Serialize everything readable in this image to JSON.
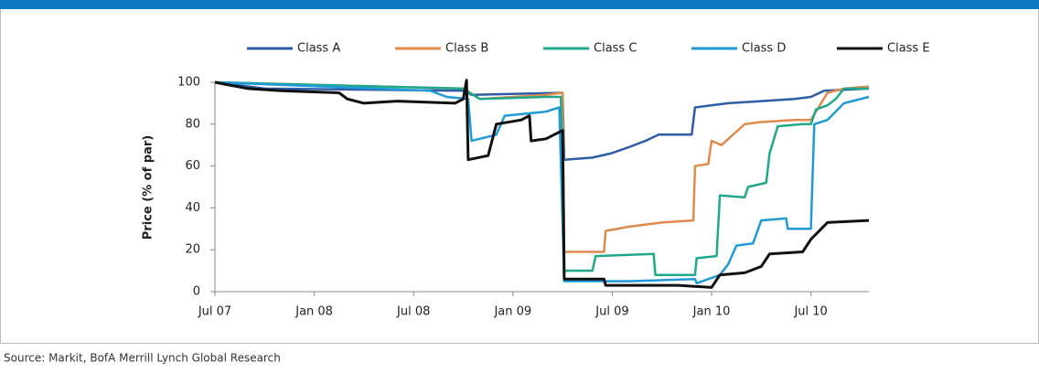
{
  "chart_data": {
    "type": "line",
    "y_label": "Price (% of par)",
    "source": "Source: Markit, BofA Merrill Lynch Global Research",
    "xlim": [
      0,
      39.5
    ],
    "xticks": [
      {
        "value": 0,
        "label": "Jul 07"
      },
      {
        "value": 6,
        "label": "Jan 08"
      },
      {
        "value": 12,
        "label": "Jul 08"
      },
      {
        "value": 18,
        "label": "Jan 09"
      },
      {
        "value": 24,
        "label": "Jul 09"
      },
      {
        "value": 30,
        "label": "Jan 10"
      },
      {
        "value": 36,
        "label": "Jul 10"
      }
    ],
    "ylim": [
      0,
      100
    ],
    "yticks": [
      0,
      20,
      40,
      60,
      80,
      100
    ],
    "grid": false,
    "legend": "top",
    "series": [
      {
        "name": "Class A",
        "color": "#2e5ca6",
        "x": [
          0,
          3,
          15,
          15.5,
          21,
          21.1,
          22.8,
          23.9,
          25,
          26,
          26.8,
          28.8,
          29,
          31,
          33,
          35,
          36,
          36.8,
          39.5
        ],
        "values": [
          100,
          97,
          96,
          94,
          95,
          63,
          64,
          66,
          69,
          72,
          75,
          75,
          88,
          90,
          91,
          92,
          93,
          96,
          97
        ]
      },
      {
        "name": "Class B",
        "color": "#e08a4c",
        "x": [
          0,
          15,
          16,
          20,
          21,
          21.1,
          23.5,
          23.6,
          25,
          27,
          28.9,
          29,
          29.8,
          30,
          30.6,
          32,
          33,
          35,
          36,
          37,
          38,
          39.5
        ],
        "values": [
          100,
          97,
          92,
          94,
          95,
          19,
          19,
          29,
          31,
          33,
          34,
          60,
          61,
          72,
          70,
          80,
          81,
          82,
          82,
          95,
          97,
          98
        ]
      },
      {
        "name": "Class C",
        "color": "#1fa88a",
        "x": [
          0,
          15,
          16,
          20,
          20.9,
          21.1,
          22.8,
          23,
          26.5,
          26.6,
          29,
          29.1,
          30.3,
          30.5,
          32,
          32.2,
          33.3,
          33.5,
          34,
          35.5,
          36,
          36.3,
          37,
          37.5,
          38,
          39.5
        ],
        "values": [
          100,
          97,
          92,
          93,
          93,
          10,
          10,
          17,
          18,
          8,
          8,
          16,
          17,
          46,
          45,
          50,
          52,
          66,
          79,
          80,
          80,
          87,
          89,
          92,
          97,
          97
        ]
      },
      {
        "name": "Class D",
        "color": "#1f9ad6",
        "x": [
          0,
          13,
          14,
          15.3,
          15.5,
          17,
          17.5,
          20,
          20.8,
          21.1,
          25,
          29,
          29.1,
          30.5,
          31,
          31.5,
          32.5,
          33,
          34.5,
          34.6,
          36,
          36.2,
          37,
          38,
          39.5
        ],
        "values": [
          100,
          96,
          93,
          92,
          72,
          75,
          84,
          86,
          88,
          5,
          5,
          6,
          4,
          8,
          13,
          22,
          23,
          34,
          35,
          30,
          30,
          80,
          82,
          90,
          93
        ]
      },
      {
        "name": "Class E",
        "color": "#111111",
        "x": [
          0,
          2,
          4,
          7.5,
          8,
          9,
          11,
          14.5,
          15,
          15.2,
          15.3,
          16.5,
          17,
          18.5,
          19,
          19.1,
          20,
          21,
          21.1,
          23.5,
          23.6,
          28,
          30,
          30.5,
          32,
          33,
          33.5,
          35.5,
          36,
          37,
          39.5
        ],
        "values": [
          100,
          97,
          96,
          95,
          92,
          90,
          91,
          90,
          92,
          101,
          63,
          65,
          80,
          82,
          84,
          72,
          73,
          77,
          6,
          6,
          3,
          3,
          2,
          8,
          9,
          12,
          18,
          19,
          25,
          33,
          34
        ]
      }
    ]
  }
}
